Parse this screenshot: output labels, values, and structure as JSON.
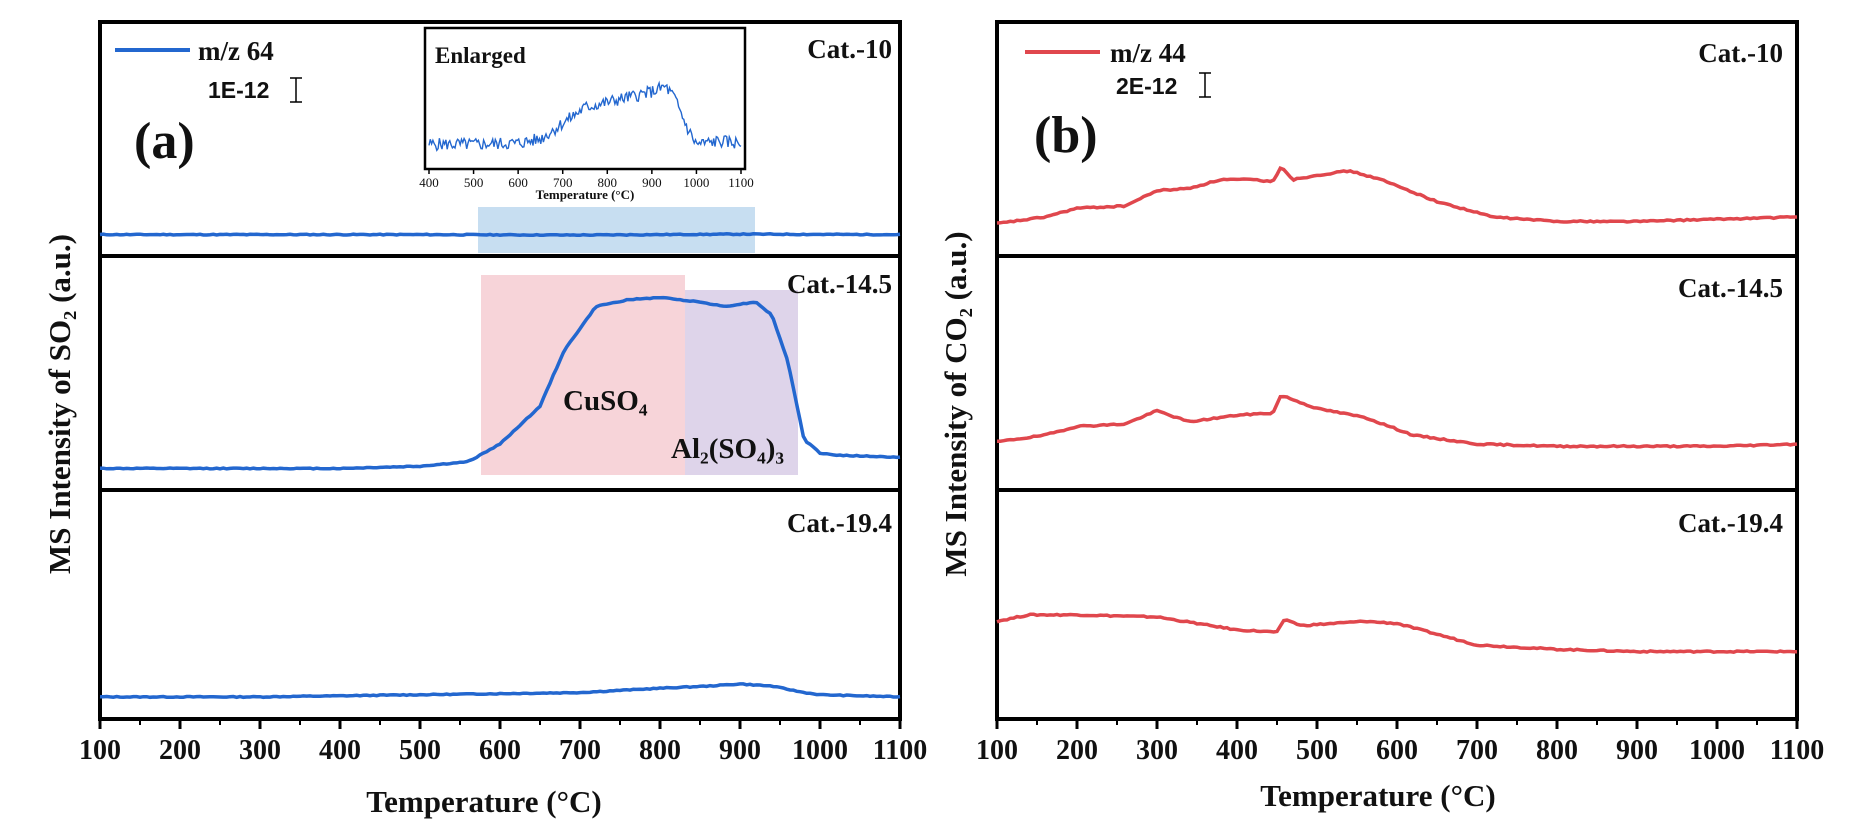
{
  "colors": {
    "so2": "#2367cf",
    "co2": "#e0474d",
    "shade_blue": "#b9d6ee",
    "shade_pink": "#f5c9cf",
    "shade_purple": "#d8cde6",
    "axis": "#000000"
  },
  "chart_data": [
    {
      "type": "line",
      "panel_label": "(a)",
      "xlabel": "Temperature (°C)",
      "ylabel": "MS Intensity of SO₂ (a.u.)",
      "xlim": [
        100,
        1100
      ],
      "xticks": [
        "100",
        "200",
        "300",
        "400",
        "500",
        "600",
        "700",
        "800",
        "900",
        "1000",
        "1100"
      ],
      "legend": {
        "label": "m/z  64",
        "scale": "1E-12",
        "position": "top-left"
      },
      "subpanels": [
        {
          "name": "Cat.-10",
          "values": [
            [
              100,
              0.07
            ],
            [
              300,
              0.07
            ],
            [
              500,
              0.07
            ],
            [
              700,
              0.068
            ],
            [
              900,
              0.072
            ],
            [
              1100,
              0.07
            ]
          ],
          "ylim": [
            0,
            1
          ]
        },
        {
          "name": "Cat.-14.5",
          "values": [
            [
              100,
              0.07
            ],
            [
              400,
              0.07
            ],
            [
              500,
              0.08
            ],
            [
              560,
              0.1
            ],
            [
              600,
              0.18
            ],
            [
              650,
              0.35
            ],
            [
              680,
              0.6
            ],
            [
              720,
              0.8
            ],
            [
              760,
              0.83
            ],
            [
              800,
              0.84
            ],
            [
              850,
              0.82
            ],
            [
              880,
              0.8
            ],
            [
              900,
              0.81
            ],
            [
              920,
              0.82
            ],
            [
              940,
              0.76
            ],
            [
              960,
              0.55
            ],
            [
              980,
              0.2
            ],
            [
              1000,
              0.14
            ],
            [
              1020,
              0.13
            ],
            [
              1100,
              0.12
            ]
          ],
          "ylim": [
            0,
            1
          ]
        },
        {
          "name": "Cat.-19.4",
          "values": [
            [
              100,
              0.07
            ],
            [
              300,
              0.07
            ],
            [
              500,
              0.08
            ],
            [
              700,
              0.09
            ],
            [
              800,
              0.11
            ],
            [
              860,
              0.12
            ],
            [
              900,
              0.13
            ],
            [
              940,
              0.12
            ],
            [
              980,
              0.09
            ],
            [
              1000,
              0.08
            ],
            [
              1100,
              0.07
            ]
          ],
          "ylim": [
            0,
            1
          ]
        }
      ],
      "annotations": [
        {
          "text": "CuSO₄",
          "x_range": [
            575,
            832
          ],
          "shade": "pink"
        },
        {
          "text": "Al₂(SO₄)₃",
          "x_range": [
            832,
            975
          ],
          "shade": "purple"
        }
      ],
      "inset": {
        "title": "Enlarged",
        "xlabel": "Temperature (°C)",
        "xlim": [
          400,
          1100
        ],
        "xticks": [
          "400",
          "500",
          "600",
          "700",
          "800",
          "900",
          "1000",
          "1100"
        ],
        "values": [
          [
            400,
            0.15
          ],
          [
            500,
            0.15
          ],
          [
            600,
            0.16
          ],
          [
            650,
            0.2
          ],
          [
            700,
            0.35
          ],
          [
            750,
            0.5
          ],
          [
            800,
            0.55
          ],
          [
            850,
            0.6
          ],
          [
            900,
            0.65
          ],
          [
            930,
            0.7
          ],
          [
            950,
            0.6
          ],
          [
            980,
            0.3
          ],
          [
            1000,
            0.15
          ],
          [
            1050,
            0.18
          ],
          [
            1100,
            0.16
          ]
        ],
        "source_x_range": [
          575,
          920
        ]
      }
    },
    {
      "type": "line",
      "panel_label": "(b)",
      "xlabel": "Temperature (°C)",
      "ylabel": "MS Intensity of CO₂ (a.u.)",
      "xlim": [
        100,
        1100
      ],
      "xticks": [
        "100",
        "200",
        "300",
        "400",
        "500",
        "600",
        "700",
        "800",
        "900",
        "1000",
        "1100"
      ],
      "legend": {
        "label": "m/z  44",
        "scale": "2E-12",
        "position": "top-left"
      },
      "subpanels": [
        {
          "name": "Cat.-10",
          "values": [
            [
              100,
              0.12
            ],
            [
              160,
              0.15
            ],
            [
              200,
              0.19
            ],
            [
              260,
              0.2
            ],
            [
              300,
              0.27
            ],
            [
              340,
              0.28
            ],
            [
              380,
              0.32
            ],
            [
              420,
              0.32
            ],
            [
              445,
              0.31
            ],
            [
              455,
              0.38
            ],
            [
              470,
              0.32
            ],
            [
              500,
              0.34
            ],
            [
              540,
              0.36
            ],
            [
              580,
              0.32
            ],
            [
              650,
              0.22
            ],
            [
              720,
              0.15
            ],
            [
              800,
              0.13
            ],
            [
              900,
              0.13
            ],
            [
              1000,
              0.14
            ],
            [
              1100,
              0.15
            ]
          ],
          "ylim": [
            0,
            1
          ]
        },
        {
          "name": "Cat.-14.5",
          "values": [
            [
              100,
              0.19
            ],
            [
              160,
              0.22
            ],
            [
              200,
              0.26
            ],
            [
              260,
              0.27
            ],
            [
              300,
              0.33
            ],
            [
              340,
              0.28
            ],
            [
              400,
              0.31
            ],
            [
              445,
              0.32
            ],
            [
              455,
              0.4
            ],
            [
              500,
              0.34
            ],
            [
              560,
              0.3
            ],
            [
              620,
              0.22
            ],
            [
              700,
              0.18
            ],
            [
              800,
              0.17
            ],
            [
              900,
              0.17
            ],
            [
              1000,
              0.17
            ],
            [
              1100,
              0.18
            ]
          ],
          "ylim": [
            0,
            1
          ]
        },
        {
          "name": "Cat.-19.4",
          "values": [
            [
              100,
              0.42
            ],
            [
              140,
              0.45
            ],
            [
              200,
              0.45
            ],
            [
              300,
              0.44
            ],
            [
              400,
              0.38
            ],
            [
              450,
              0.37
            ],
            [
              460,
              0.43
            ],
            [
              480,
              0.4
            ],
            [
              560,
              0.42
            ],
            [
              600,
              0.41
            ],
            [
              700,
              0.31
            ],
            [
              800,
              0.29
            ],
            [
              900,
              0.28
            ],
            [
              1000,
              0.28
            ],
            [
              1100,
              0.28
            ]
          ],
          "ylim": [
            0,
            1
          ]
        }
      ]
    }
  ]
}
